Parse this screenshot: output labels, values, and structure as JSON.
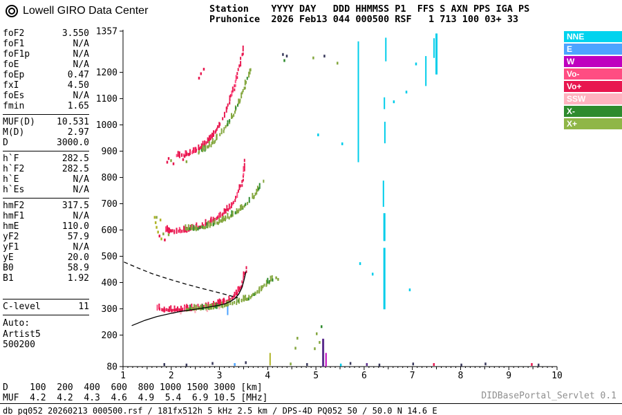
{
  "header": {
    "logo_title": "Lowell GIRO Data Center",
    "station_line1": "Station    YYYY DAY   DDD HHMMSS P1  FFS S AXN PPS IGA PS",
    "station_line2": "Pruhonice  2026 Feb13 044 000500 RSF   1 713 100 03+ 33"
  },
  "params": {
    "groups": [
      {
        "rows": [
          [
            "foF2",
            "3.550"
          ],
          [
            "foF1",
            "N/A"
          ],
          [
            "foF1p",
            "N/A"
          ],
          [
            "foE",
            "N/A"
          ],
          [
            "foEp",
            "0.47"
          ],
          [
            "fxI",
            "4.50"
          ],
          [
            "foEs",
            "N/A"
          ],
          [
            "fmin",
            "1.65"
          ]
        ]
      },
      {
        "rows": [
          [
            "MUF(D)",
            "10.531"
          ],
          [
            "M(D)",
            "2.97"
          ],
          [
            "D",
            "3000.0"
          ]
        ]
      },
      {
        "rows": [
          [
            "h`F",
            "282.5"
          ],
          [
            "h`F2",
            "282.5"
          ],
          [
            "h`E",
            "N/A"
          ],
          [
            "h`Es",
            "N/A"
          ]
        ]
      },
      {
        "rows": [
          [
            "hmF2",
            "317.5"
          ],
          [
            "hmF1",
            "N/A"
          ],
          [
            "hmE",
            "110.0"
          ],
          [
            "yF2",
            "57.9"
          ],
          [
            "yF1",
            "N/A"
          ],
          [
            "yE",
            "20.0"
          ],
          [
            "B0",
            "58.9"
          ],
          [
            "B1",
            "1.92"
          ]
        ]
      },
      {
        "gap_before": true,
        "rows": [
          [
            "C-level",
            "11"
          ]
        ]
      }
    ],
    "auto_label": "Auto:",
    "auto_lines": [
      "Artist5",
      "500200"
    ]
  },
  "legend": {
    "items": [
      {
        "label": "NNE",
        "color": "#00d3ee"
      },
      {
        "label": "E",
        "color": "#4da3ff"
      },
      {
        "label": "W",
        "color": "#bf00bf"
      },
      {
        "label": "Vo-",
        "color": "#ff4d82"
      },
      {
        "label": "Vo+",
        "color": "#e8174f"
      },
      {
        "label": "SSW",
        "color": "#ffb3c0"
      },
      {
        "label": "X-",
        "color": "#2e8b2e"
      },
      {
        "label": "X+",
        "color": "#8fb647"
      }
    ]
  },
  "chart_data": {
    "type": "scatter",
    "title": "Pruhonice ionogram 2026 Feb13 044 000500",
    "xlabel": "[MHz]",
    "ylabel": "[km]",
    "xlim": [
      1,
      10
    ],
    "ylim": [
      80,
      1357
    ],
    "x_ticks": [
      1,
      2,
      3,
      4,
      5,
      6,
      7,
      8,
      9,
      10
    ],
    "y_ticks": [
      80,
      200,
      300,
      400,
      500,
      600,
      700,
      800,
      900,
      1000,
      1100,
      1200,
      1357
    ],
    "grid": false,
    "legend_position": "top-right",
    "colors": {
      "red": "#e8174f",
      "vopink": "#ff4d82",
      "green": "#84a73f",
      "dgreen": "#2e8b2e",
      "cyan": "#00cdea",
      "blue": "#4da3ff",
      "magenta": "#bf00bf",
      "pink": "#ffb3c0",
      "purple": "#5b2d8e",
      "yellow": "#b0b428",
      "dark": "#3a3a5c"
    },
    "traces": [
      {
        "name": "F-hop1-O",
        "color": "red",
        "alt": "vopink",
        "alt_p": 0.15,
        "points": [
          [
            1.72,
            302
          ],
          [
            1.8,
            297
          ],
          [
            1.9,
            294
          ],
          [
            2.0,
            294
          ],
          [
            2.1,
            295
          ],
          [
            2.2,
            297
          ],
          [
            2.35,
            299
          ],
          [
            2.5,
            302
          ],
          [
            2.65,
            306
          ],
          [
            2.8,
            311
          ],
          [
            2.95,
            318
          ],
          [
            3.05,
            324
          ],
          [
            3.15,
            331
          ],
          [
            3.25,
            341
          ],
          [
            3.32,
            352
          ],
          [
            3.38,
            366
          ],
          [
            3.44,
            386
          ],
          [
            3.49,
            412
          ],
          [
            3.53,
            438
          ],
          [
            3.56,
            458
          ],
          [
            3.58,
            470
          ]
        ]
      },
      {
        "name": "F-hop1-X",
        "color": "green",
        "alt": "dgreen",
        "alt_p": 0.15,
        "points": [
          [
            2.28,
            301
          ],
          [
            2.4,
            300
          ],
          [
            2.55,
            301
          ],
          [
            2.7,
            303
          ],
          [
            2.85,
            306
          ],
          [
            3.0,
            310
          ],
          [
            3.15,
            315
          ],
          [
            3.3,
            322
          ],
          [
            3.45,
            331
          ],
          [
            3.6,
            342
          ],
          [
            3.72,
            354
          ],
          [
            3.82,
            368
          ],
          [
            3.92,
            385
          ],
          [
            4.0,
            399
          ],
          [
            4.07,
            408
          ],
          [
            4.13,
            411
          ]
        ]
      },
      {
        "name": "F-hop2-O",
        "color": "red",
        "alt": "vopink",
        "alt_p": 0.15,
        "points": [
          [
            1.88,
            601
          ],
          [
            1.98,
            595
          ],
          [
            2.1,
            594
          ],
          [
            2.25,
            597
          ],
          [
            2.4,
            603
          ],
          [
            2.55,
            611
          ],
          [
            2.7,
            621
          ],
          [
            2.85,
            634
          ],
          [
            3.0,
            650
          ],
          [
            3.12,
            668
          ],
          [
            3.22,
            688
          ],
          [
            3.32,
            714
          ],
          [
            3.4,
            745
          ],
          [
            3.46,
            782
          ],
          [
            3.5,
            826
          ],
          [
            3.53,
            868
          ],
          [
            3.55,
            898
          ]
        ]
      },
      {
        "name": "F-hop2-X",
        "color": "green",
        "alt": "dgreen",
        "alt_p": 0.15,
        "points": [
          [
            2.3,
            604
          ],
          [
            2.45,
            604
          ],
          [
            2.6,
            608
          ],
          [
            2.75,
            615
          ],
          [
            2.9,
            624
          ],
          [
            3.05,
            636
          ],
          [
            3.2,
            650
          ],
          [
            3.35,
            667
          ],
          [
            3.5,
            687
          ],
          [
            3.62,
            708
          ],
          [
            3.73,
            731
          ],
          [
            3.82,
            756
          ],
          [
            3.89,
            778
          ],
          [
            3.94,
            793
          ]
        ]
      },
      {
        "name": "F-hop3-O",
        "color": "red",
        "alt": "vopink",
        "alt_p": 0.15,
        "points": [
          [
            2.12,
            882
          ],
          [
            2.25,
            884
          ],
          [
            2.4,
            892
          ],
          [
            2.55,
            906
          ],
          [
            2.7,
            926
          ],
          [
            2.82,
            950
          ],
          [
            2.93,
            978
          ],
          [
            3.03,
            1010
          ],
          [
            3.12,
            1046
          ],
          [
            3.2,
            1086
          ],
          [
            3.28,
            1130
          ],
          [
            3.35,
            1178
          ],
          [
            3.41,
            1228
          ],
          [
            3.46,
            1272
          ],
          [
            3.5,
            1298
          ]
        ]
      },
      {
        "name": "F-hop3-X",
        "color": "green",
        "alt": "dgreen",
        "alt_p": 0.15,
        "points": [
          [
            2.56,
            895
          ],
          [
            2.7,
            908
          ],
          [
            2.84,
            928
          ],
          [
            2.98,
            954
          ],
          [
            3.1,
            984
          ],
          [
            3.22,
            1018
          ],
          [
            3.33,
            1056
          ],
          [
            3.43,
            1098
          ],
          [
            3.52,
            1142
          ],
          [
            3.6,
            1186
          ],
          [
            3.67,
            1228
          ]
        ]
      }
    ],
    "vlines": [
      [
        5.88,
        858,
        1318,
        "cyan",
        2
      ],
      [
        6.42,
        298,
        532,
        "cyan",
        3
      ],
      [
        6.42,
        558,
        664,
        "cyan",
        3
      ],
      [
        6.4,
        688,
        788,
        "cyan",
        2
      ],
      [
        6.43,
        930,
        1012,
        "cyan",
        2
      ],
      [
        6.42,
        1060,
        1105,
        "cyan",
        2
      ],
      [
        6.45,
        1242,
        1332,
        "cyan",
        2
      ],
      [
        7.28,
        1148,
        1262,
        "cyan",
        2
      ],
      [
        7.45,
        1255,
        1330,
        "cyan",
        2
      ],
      [
        7.5,
        1192,
        1348,
        "cyan",
        3
      ],
      [
        5.15,
        80,
        186,
        "purple",
        3
      ],
      [
        5.21,
        80,
        132,
        "magenta",
        2
      ],
      [
        4.05,
        84,
        132,
        "yellow",
        2
      ],
      [
        3.17,
        276,
        312,
        "blue",
        2
      ]
    ],
    "noise": [
      [
        1.66,
        648,
        "yellow"
      ],
      [
        1.68,
        628,
        "yellow"
      ],
      [
        1.7,
        610,
        "yellow"
      ],
      [
        1.73,
        592,
        "yellow"
      ],
      [
        1.76,
        577,
        "red"
      ],
      [
        1.8,
        566,
        "yellow"
      ],
      [
        1.84,
        585,
        "green"
      ],
      [
        1.87,
        562,
        "red"
      ],
      [
        1.7,
        648,
        "green"
      ],
      [
        1.78,
        638,
        "yellow"
      ],
      [
        1.95,
        582,
        "green"
      ],
      [
        1.92,
        858,
        "red"
      ],
      [
        2.0,
        864,
        "green"
      ],
      [
        2.05,
        852,
        "red"
      ],
      [
        2.25,
        868,
        "red"
      ],
      [
        2.28,
        880,
        "red"
      ],
      [
        2.32,
        860,
        "green"
      ],
      [
        1.95,
        872,
        "red"
      ],
      [
        2.58,
        1178,
        "red"
      ],
      [
        2.62,
        1195,
        "red"
      ],
      [
        2.68,
        1212,
        "red"
      ],
      [
        4.18,
        418,
        "green"
      ],
      [
        4.22,
        412,
        "green"
      ],
      [
        4.35,
        1245,
        "dgreen"
      ],
      [
        4.4,
        1262,
        "dark"
      ],
      [
        4.32,
        1268,
        "dark"
      ],
      [
        4.95,
        1255,
        "green"
      ],
      [
        5.45,
        1235,
        "green"
      ],
      [
        5.18,
        1262,
        "dark"
      ],
      [
        5.05,
        962,
        "cyan"
      ],
      [
        5.55,
        928,
        "cyan"
      ],
      [
        6.62,
        1088,
        "cyan"
      ],
      [
        6.88,
        1125,
        "cyan"
      ],
      [
        7.08,
        1232,
        "cyan"
      ],
      [
        5.92,
        472,
        "cyan"
      ],
      [
        6.95,
        372,
        "cyan"
      ],
      [
        6.18,
        432,
        "cyan"
      ],
      [
        4.98,
        148,
        "green"
      ],
      [
        5.02,
        205,
        "green"
      ],
      [
        5.08,
        172,
        "green"
      ],
      [
        5.12,
        232,
        "dgreen"
      ],
      [
        4.62,
        188,
        "green"
      ],
      [
        4.58,
        150,
        "green"
      ],
      [
        1.86,
        88,
        "dark"
      ],
      [
        2.32,
        86,
        "dark"
      ],
      [
        2.86,
        92,
        "dark"
      ],
      [
        3.32,
        88,
        "blue"
      ],
      [
        3.55,
        95,
        "dark"
      ],
      [
        4.48,
        90,
        "green"
      ],
      [
        4.82,
        88,
        "dark"
      ],
      [
        5.52,
        86,
        "cyan"
      ],
      [
        5.72,
        92,
        "dark"
      ],
      [
        6.06,
        88,
        "purple"
      ],
      [
        6.32,
        86,
        "dark"
      ],
      [
        7.02,
        90,
        "dark"
      ],
      [
        7.45,
        88,
        "red"
      ],
      [
        8.02,
        86,
        "dark"
      ],
      [
        8.52,
        90,
        "dark"
      ],
      [
        9.48,
        88,
        "red"
      ],
      [
        9.62,
        86,
        "dark"
      ],
      [
        2.05,
        286,
        "pink"
      ],
      [
        2.2,
        284,
        "pink"
      ],
      [
        2.5,
        289,
        "pink"
      ],
      [
        2.75,
        293,
        "pink"
      ],
      [
        3.0,
        303,
        "pink"
      ]
    ],
    "profile_solid": [
      [
        1.18,
        236
      ],
      [
        1.45,
        256
      ],
      [
        1.7,
        270
      ],
      [
        1.95,
        281
      ],
      [
        2.2,
        290
      ],
      [
        2.45,
        297
      ],
      [
        2.7,
        304
      ],
      [
        2.95,
        312
      ],
      [
        3.1,
        318
      ],
      [
        3.22,
        327
      ],
      [
        3.32,
        339
      ],
      [
        3.4,
        356
      ],
      [
        3.46,
        378
      ],
      [
        3.5,
        402
      ],
      [
        3.53,
        425
      ],
      [
        3.55,
        442
      ]
    ],
    "profile_dashed": [
      [
        1.02,
        478
      ],
      [
        1.3,
        456
      ],
      [
        1.6,
        434
      ],
      [
        1.95,
        413
      ],
      [
        2.3,
        394
      ],
      [
        2.65,
        377
      ],
      [
        2.95,
        363
      ],
      [
        3.2,
        351
      ],
      [
        3.38,
        342
      ]
    ]
  },
  "footer": {
    "dmuf": {
      "d_label": "D",
      "d_values": [
        "100",
        "200",
        "400",
        "600",
        "800",
        "1000",
        "1500",
        "3000"
      ],
      "d_unit": "[km]",
      "muf_label": "MUF",
      "muf_values": [
        "4.2",
        "4.2",
        "4.3",
        "4.6",
        "4.9",
        "5.4",
        "6.9",
        "10.5"
      ],
      "muf_unit": "[MHz]"
    },
    "servlet": "DIDBasePortal_Servlet 0.1",
    "status": "db pq052 20260213 000500.rsf / 181fx512h 5 kHz 2.5 km / DPS-4D PQ052 50 / 50.0 N 14.6 E"
  }
}
